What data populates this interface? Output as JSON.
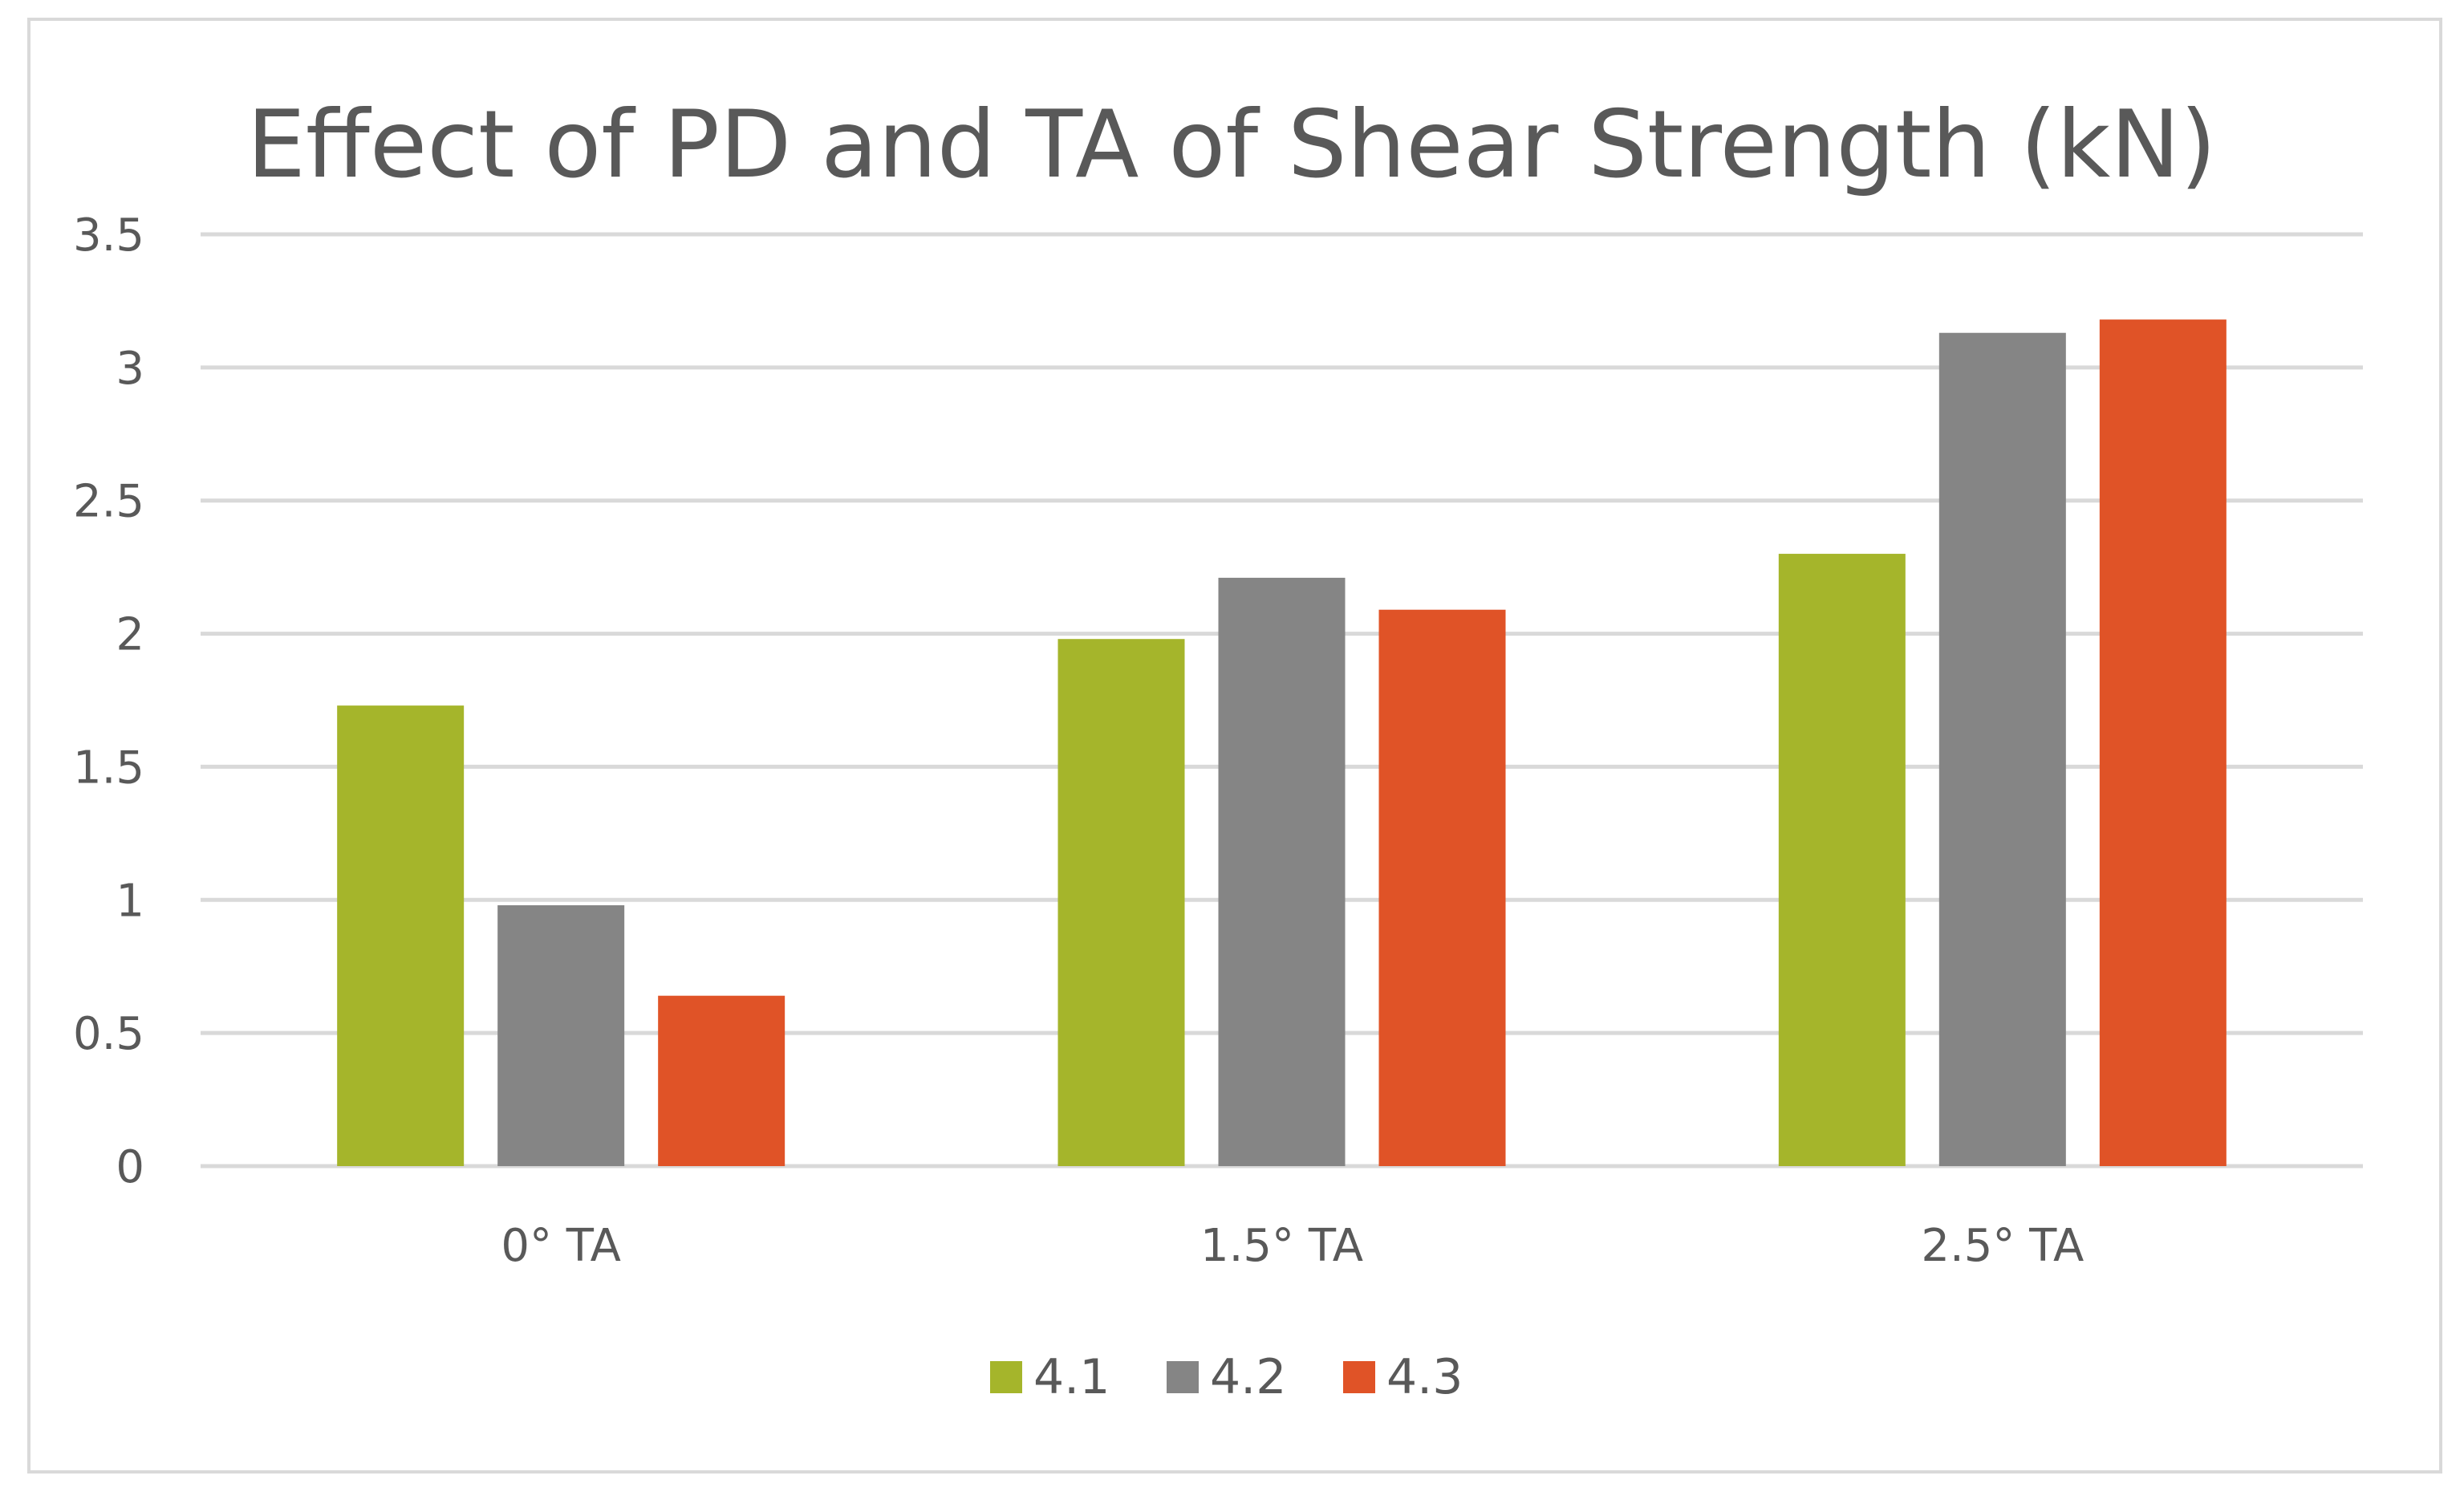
{
  "chart_data": {
    "type": "bar",
    "title": "Effect of PD and TA of Shear Strength (kN)",
    "xlabel": "",
    "ylabel": "",
    "categories": [
      "0° TA",
      "1.5° TA",
      "2.5° TA"
    ],
    "series": [
      {
        "name": "4.1",
        "color": "#a5b52b",
        "values": [
          1.73,
          1.98,
          2.3
        ]
      },
      {
        "name": "4.2",
        "color": "#858585",
        "values": [
          0.98,
          2.21,
          3.13
        ]
      },
      {
        "name": "4.3",
        "color": "#e05327",
        "values": [
          0.64,
          2.09,
          3.18
        ]
      }
    ],
    "ylim": [
      0,
      3.5
    ],
    "yticks": [
      "0",
      "0.5",
      "1",
      "1.5",
      "2",
      "2.5",
      "3",
      "3.5"
    ],
    "grid": true,
    "legend": "bottom-center",
    "colors": {
      "gridline": "#d9d9d9",
      "text": "#595959",
      "border": "#d9d9d9"
    }
  }
}
